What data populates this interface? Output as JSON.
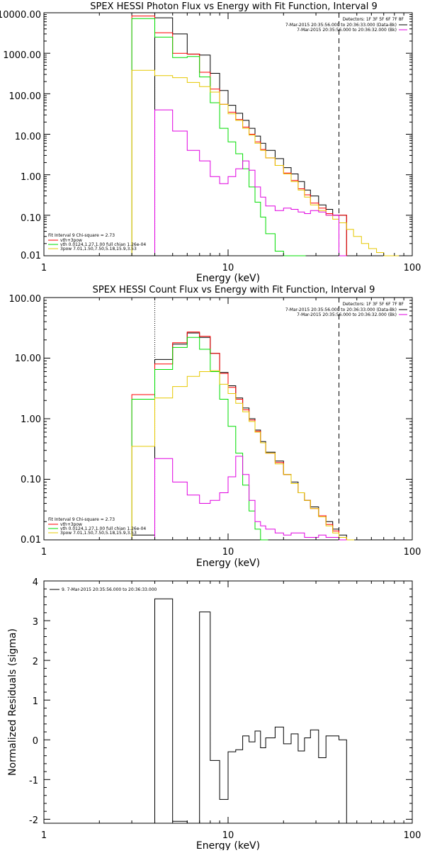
{
  "colors": {
    "black": "#000000",
    "red": "#ff0000",
    "green": "#00dd00",
    "yellow": "#e6c800",
    "magenta": "#e000e0"
  },
  "chart_data": [
    {
      "type": "line",
      "title": "SPEX HESSI Photon Flux vs Energy with Fit Function, Interval 9",
      "xlabel": "Energy (keV)",
      "ylabel": "",
      "xscale": "log",
      "yscale": "log",
      "xlim": [
        1,
        100
      ],
      "ylim": [
        0.01,
        10000
      ],
      "xticks": [
        "1",
        "10",
        "100"
      ],
      "yticks": [
        "0.01",
        "0.10",
        "1.00",
        "10.00",
        "100.00",
        "1000.00",
        "10000.00"
      ],
      "legend_topright": [
        "Detectors: 1F 3F 5F 6F 7F 8F",
        "7-Mar-2015 20:35:56.000 to 20:36:33.000 (Data-Bk)",
        "7-Mar-2015 20:35:56.000 to 20:36:32.000 (Bk)"
      ],
      "legend_bottomleft": [
        "Fit Interval 9   Chi-square = 2.73",
        "vth+3pow",
        "vth 0.0124,1.27,1.00  full chian 1.26e-04",
        "3pow 7.01,1.50,7.50,5.18,15.9,3.53"
      ],
      "vline_dashed": 40,
      "vline_dotted": 4,
      "series": [
        {
          "color": "black",
          "x": [
            4,
            5,
            6,
            7,
            8,
            9,
            10,
            11,
            12,
            13,
            14,
            15,
            16,
            18,
            20,
            22,
            24,
            26,
            28,
            31,
            34,
            37,
            40
          ],
          "y": [
            7500,
            3000,
            950,
            900,
            320,
            120,
            52,
            33,
            22,
            14,
            9,
            6,
            4,
            2.5,
            1.5,
            1.05,
            0.68,
            0.42,
            0.3,
            0.18,
            0.14,
            0.1,
            0.1
          ]
        },
        {
          "color": "red",
          "x": [
            3,
            4,
            5,
            6,
            7,
            8,
            9,
            10,
            11,
            12,
            13,
            14,
            15,
            16,
            18,
            20,
            22,
            24,
            26,
            28,
            31,
            34,
            37,
            40
          ],
          "y": [
            8300,
            3200,
            1000,
            950,
            340,
            130,
            55,
            35,
            23,
            15,
            10,
            6.5,
            4.2,
            2.6,
            1.7,
            1.1,
            0.72,
            0.45,
            0.32,
            0.2,
            0.15,
            0.11,
            0.1,
            0.1
          ]
        },
        {
          "color": "green",
          "x": [
            3,
            4,
            5,
            6,
            7,
            8,
            9,
            10,
            11,
            12,
            13,
            14,
            15,
            16,
            18,
            20,
            22,
            24
          ],
          "y": [
            7200,
            2500,
            780,
            830,
            260,
            60,
            14,
            6.5,
            3.3,
            1.4,
            0.5,
            0.21,
            0.09,
            0.035,
            0.013,
            0.01,
            0.01,
            0.01
          ]
        },
        {
          "color": "yellow",
          "x": [
            3,
            4,
            5,
            6,
            7,
            8,
            9,
            10,
            11,
            12,
            13,
            14,
            15,
            16,
            18,
            20,
            22,
            24,
            26,
            28,
            31,
            34,
            37,
            40,
            44,
            48,
            53,
            58,
            64,
            70,
            77
          ],
          "y": [
            380,
            280,
            250,
            190,
            150,
            110,
            55,
            32,
            22,
            14,
            9.5,
            6,
            4,
            2.6,
            1.7,
            1.05,
            0.68,
            0.42,
            0.28,
            0.18,
            0.13,
            0.1,
            0.08,
            0.065,
            0.045,
            0.03,
            0.02,
            0.015,
            0.012,
            0.01,
            0.01
          ]
        },
        {
          "color": "magenta",
          "x": [
            4,
            5,
            6,
            7,
            8,
            9,
            10,
            11,
            12,
            13,
            14,
            15,
            16,
            18,
            20,
            22,
            24,
            26,
            28,
            31,
            34,
            37,
            40
          ],
          "y": [
            40,
            12,
            4,
            2.2,
            0.9,
            0.6,
            0.9,
            1.4,
            2.2,
            1.3,
            0.5,
            0.28,
            0.17,
            0.13,
            0.15,
            0.14,
            0.12,
            0.11,
            0.13,
            0.12,
            0.1,
            0.1,
            0.01
          ]
        }
      ]
    },
    {
      "type": "line",
      "title": "SPEX HESSI Count Flux vs Energy with Fit Function, Interval 9",
      "xlabel": "Energy (keV)",
      "ylabel": "",
      "xscale": "log",
      "yscale": "log",
      "xlim": [
        1,
        100
      ],
      "ylim": [
        0.01,
        100
      ],
      "xticks": [
        "1",
        "10",
        "100"
      ],
      "yticks": [
        "0.01",
        "0.10",
        "1.00",
        "10.00",
        "100.00"
      ],
      "legend_topright": [
        "Detectors: 1F 3F 5F 6F 7F 8F",
        "7-Mar-2015 20:35:56.000 to 20:36:33.000 (Data-Bk)",
        "7-Mar-2015 20:35:56.000 to 20:36:32.000 (Bk)"
      ],
      "legend_bottomleft": [
        "Fit Interval 9   Chi-square = 2.73",
        "vth+3pow",
        "vth 0.0124,1.27,1.00  full chian 1.26e-04",
        "3pow 7.01,1.50,7.50,5.18,15.9,3.53"
      ],
      "vline_dashed": 40,
      "vline_dotted": 4,
      "series": [
        {
          "color": "black",
          "x": [
            3,
            4,
            5,
            6,
            7,
            8,
            9,
            10,
            11,
            12,
            13,
            14,
            15,
            16,
            18,
            20,
            22,
            24,
            26,
            28,
            31,
            34,
            37,
            40
          ],
          "y": [
            0.012,
            9.5,
            17,
            26,
            22,
            12,
            5.8,
            3.5,
            2.2,
            1.5,
            1.0,
            0.65,
            0.42,
            0.28,
            0.2,
            0.12,
            0.09,
            0.06,
            0.045,
            0.035,
            0.025,
            0.02,
            0.015,
            0.012
          ]
        },
        {
          "color": "red",
          "x": [
            3,
            4,
            5,
            6,
            7,
            8,
            9,
            10,
            11,
            12,
            13,
            14,
            15,
            16,
            18,
            20,
            22,
            24,
            26,
            28,
            31,
            34,
            37,
            40
          ],
          "y": [
            2.5,
            8,
            18,
            27,
            23,
            12,
            5.6,
            3.3,
            2.1,
            1.4,
            0.95,
            0.62,
            0.4,
            0.27,
            0.19,
            0.12,
            0.085,
            0.06,
            0.045,
            0.033,
            0.025,
            0.018,
            0.014,
            0.011
          ]
        },
        {
          "color": "green",
          "x": [
            3,
            4,
            5,
            6,
            7,
            8,
            9,
            10,
            11,
            12,
            13,
            14,
            15
          ],
          "y": [
            2.1,
            6.5,
            15,
            22,
            14,
            6,
            2.1,
            0.75,
            0.27,
            0.08,
            0.03,
            0.015,
            0.01
          ]
        },
        {
          "color": "yellow",
          "x": [
            3,
            4,
            5,
            6,
            7,
            8,
            9,
            10,
            11,
            12,
            13,
            14,
            15,
            16,
            18,
            20,
            22,
            24,
            26,
            28,
            31,
            34,
            37,
            40,
            44
          ],
          "y": [
            0.35,
            2.2,
            3.4,
            5,
            6,
            6.2,
            3.7,
            2.6,
            1.8,
            1.3,
            0.9,
            0.6,
            0.4,
            0.27,
            0.18,
            0.12,
            0.085,
            0.06,
            0.045,
            0.033,
            0.024,
            0.017,
            0.013,
            0.011,
            0.01
          ]
        },
        {
          "color": "magenta",
          "x": [
            4,
            5,
            6,
            7,
            8,
            9,
            10,
            11,
            12,
            13,
            14,
            15,
            16,
            18,
            20,
            22,
            24,
            26,
            28,
            31,
            34,
            37,
            40
          ],
          "y": [
            0.22,
            0.09,
            0.055,
            0.04,
            0.045,
            0.06,
            0.11,
            0.24,
            0.12,
            0.045,
            0.02,
            0.017,
            0.015,
            0.013,
            0.012,
            0.013,
            0.013,
            0.011,
            0.011,
            0.012,
            0.011,
            0.011,
            0.01
          ]
        }
      ]
    },
    {
      "type": "line",
      "title": "",
      "xlabel": "Energy (keV)",
      "ylabel": "Normalized Residuals (sigma)",
      "xscale": "log",
      "yscale": "linear",
      "xlim": [
        1,
        100
      ],
      "ylim": [
        -2.1,
        4
      ],
      "xticks": [
        "1",
        "10",
        "100"
      ],
      "yticks": [
        "-2",
        "-1",
        "0",
        "1",
        "2",
        "3",
        "4"
      ],
      "legend_topleft": [
        "9.  7-Mar-2015 20:35:56.000 to 20:36:33.000"
      ],
      "series": [
        {
          "color": "black",
          "x": [
            4,
            5,
            6,
            7,
            8,
            9,
            10,
            11,
            12,
            13,
            14,
            15,
            16,
            18,
            20,
            22,
            24,
            26,
            28,
            31,
            34,
            37,
            40
          ],
          "y": [
            3.55,
            -2.05,
            -2.1,
            3.22,
            -0.52,
            -1.5,
            -0.3,
            -0.25,
            0.1,
            -0.05,
            0.22,
            -0.2,
            0.05,
            0.32,
            -0.1,
            0.15,
            -0.28,
            0.05,
            0.25,
            -0.45,
            0.1,
            0.1,
            0
          ]
        }
      ]
    }
  ]
}
